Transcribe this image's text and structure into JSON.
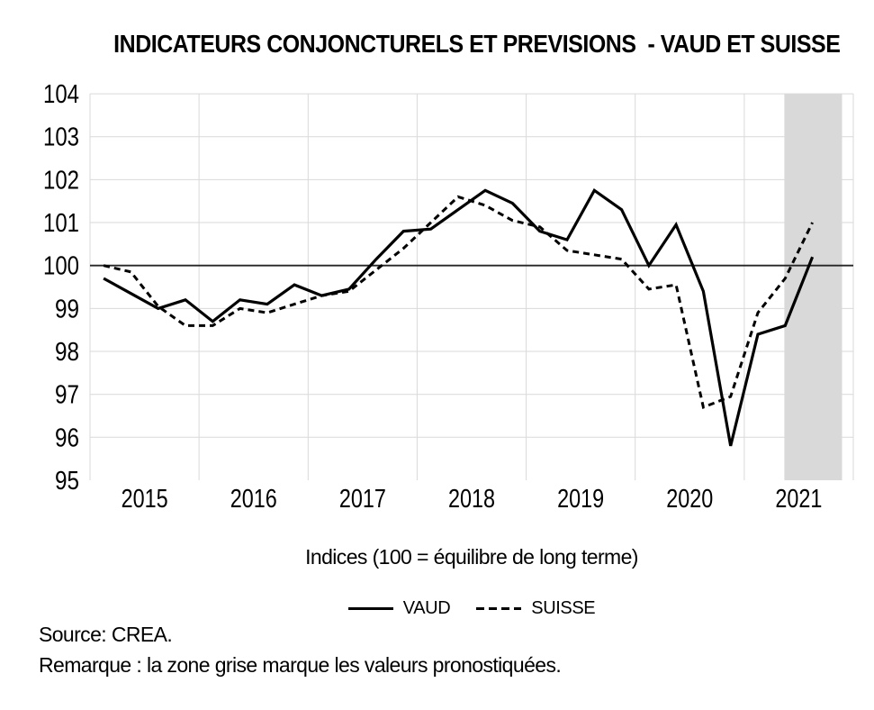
{
  "title": "INDICATEURS CONJONCTURELS ET PREVISIONS  - VAUD ET SUISSE",
  "caption": "Indices (100 = équilibre de long terme)",
  "legend": [
    {
      "label": "VAUD",
      "style": "solid"
    },
    {
      "label": "SUISSE",
      "style": "dashed"
    }
  ],
  "source": "Source: CREA.",
  "remark": "Remarque : la zone grise marque les valeurs pronostiquées.",
  "colors": {
    "background": "#ffffff",
    "grid": "#d9d9d9",
    "baseline": "#262626",
    "zone": "#d9d9d9",
    "series": "#000000",
    "text": "#000000"
  },
  "chart_data": {
    "type": "line",
    "title": "INDICATEURS CONJONCTURELS ET PREVISIONS - VAUD ET SUISSE",
    "xlabel": "",
    "ylabel": "Indices (100 = équilibre de long terme)",
    "x_unit": "quarter",
    "x_start": "2015Q1",
    "x_end": "2021Q3",
    "x_tick_labels": [
      "2015",
      "2016",
      "2017",
      "2018",
      "2019",
      "2020",
      "2021"
    ],
    "y_ticks": [
      104,
      103,
      102,
      101,
      100,
      99,
      98,
      97,
      96,
      95
    ],
    "ylim": [
      95,
      104
    ],
    "baseline": 100,
    "grid": true,
    "legend_position": "bottom",
    "forecast_zone": {
      "label": "valeurs pronostiquées",
      "from": "2021Q2",
      "to": "2021Q4",
      "from_year_frac": 6.368,
      "to_year_frac": 6.897,
      "color": "#d9d9d9"
    },
    "series": [
      {
        "name": "VAUD",
        "line": "solid",
        "color": "#000000",
        "values": [
          99.7,
          99.35,
          99.0,
          99.2,
          98.7,
          99.2,
          99.1,
          99.55,
          99.3,
          99.45,
          100.15,
          100.8,
          100.85,
          101.3,
          101.75,
          101.45,
          100.8,
          100.6,
          101.75,
          101.3,
          100.0,
          100.95,
          99.4,
          95.8,
          98.4,
          98.6,
          100.2
        ]
      },
      {
        "name": "SUISSE",
        "line": "dashed",
        "color": "#000000",
        "values": [
          100.0,
          99.85,
          99.05,
          98.6,
          98.6,
          99.0,
          98.9,
          99.1,
          99.3,
          99.4,
          99.9,
          100.4,
          101.0,
          101.6,
          101.4,
          101.05,
          100.9,
          100.35,
          100.25,
          100.15,
          99.45,
          99.55,
          96.7,
          96.95,
          98.9,
          99.7,
          101.0
        ]
      }
    ]
  }
}
